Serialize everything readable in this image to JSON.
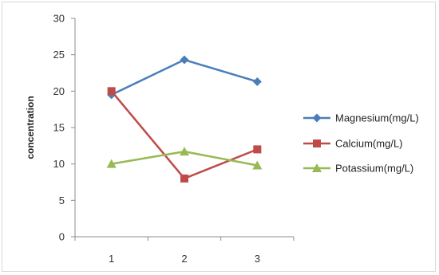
{
  "chart_data": {
    "type": "line",
    "title": "",
    "xlabel": "",
    "ylabel": "concentration",
    "categories": [
      "1",
      "2",
      "3"
    ],
    "ylim": [
      0,
      30
    ],
    "yticks": [
      0,
      5,
      10,
      15,
      20,
      25,
      30
    ],
    "grid": "off",
    "legend_position": "right",
    "series": [
      {
        "name": "Magnesium(mg/L)",
        "values": [
          19.5,
          24.3,
          21.3
        ],
        "color": "#4a7ebb",
        "marker": "diamond"
      },
      {
        "name": "Calcium(mg/L)",
        "values": [
          20,
          8,
          12
        ],
        "color": "#be4b48",
        "marker": "square"
      },
      {
        "name": "Potassium(mg/L)",
        "values": [
          10,
          11.7,
          9.8
        ],
        "color": "#98b954",
        "marker": "triangle"
      }
    ]
  }
}
